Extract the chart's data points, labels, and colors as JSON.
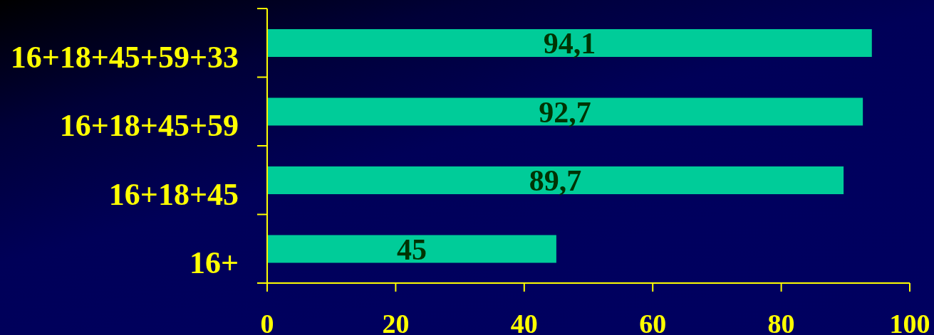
{
  "chart_data": {
    "type": "bar",
    "orientation": "horizontal",
    "categories": [
      "16+18+45+59+33",
      "16+18+45+59",
      "16+18+45",
      "16+"
    ],
    "values": [
      94.1,
      92.7,
      89.7,
      45
    ],
    "value_labels": [
      "94,1",
      "92,7",
      "89,7",
      "45"
    ],
    "color": "#00cc99",
    "xlim": [
      0,
      100
    ],
    "xticks": [
      0,
      20,
      40,
      60,
      80,
      100
    ]
  }
}
